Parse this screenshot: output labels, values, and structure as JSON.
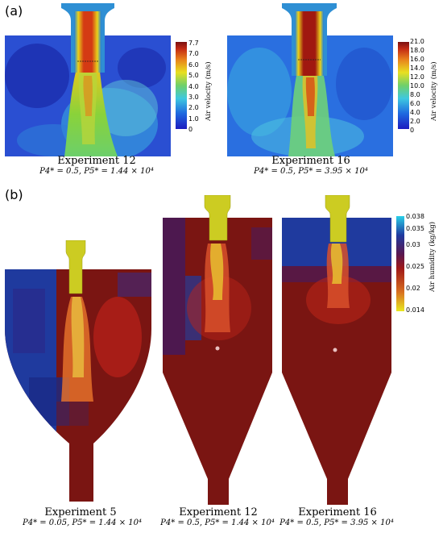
{
  "panels": {
    "a": {
      "label": "(a)"
    },
    "b": {
      "label": "(b)"
    }
  },
  "velocity_colorbar_12": {
    "title": "Air velocity (m/s)",
    "ticks": [
      "7.7",
      "7.0",
      "6.0",
      "5.0",
      "4.0",
      "3.0",
      "2.0",
      "1.0",
      "0"
    ]
  },
  "velocity_colorbar_16": {
    "title": "Air velocity (m/s)",
    "ticks": [
      "21.0",
      "18.0",
      "16.0",
      "14.0",
      "12.0",
      "10.0",
      "8.0",
      "6.0",
      "4.0",
      "2.0",
      "0"
    ]
  },
  "humidity_colorbar": {
    "title": "Air humidity (kg/kg)",
    "ticks": [
      "0.038",
      "0.035",
      "0.03",
      "0.025",
      "0.02",
      "0.014"
    ]
  },
  "experiments_a": [
    {
      "title": "Experiment 12",
      "params": "P4* = 0.5,    P5* = 1.44 × 10⁴"
    },
    {
      "title": "Experiment 16",
      "params": "P4* = 0.5,    P5* = 3.95 × 10⁴"
    }
  ],
  "experiments_b": [
    {
      "title": "Experiment 5",
      "params": "P4* = 0.05,    P5* = 1.44 × 10⁴"
    },
    {
      "title": "Experiment 12",
      "params": "P4* = 0.5,    P5* = 1.44 × 10⁴"
    },
    {
      "title": "Experiment 16",
      "params": "P4* = 0.5,    P5* = 3.95 × 10⁴"
    }
  ],
  "colors": {
    "velocity_low": "#1c2fc9",
    "velocity_high": "#a01810",
    "humidity_dark": "#7a1512",
    "humidity_blue": "#1f3a9e",
    "nozzle": "#cccc22"
  }
}
